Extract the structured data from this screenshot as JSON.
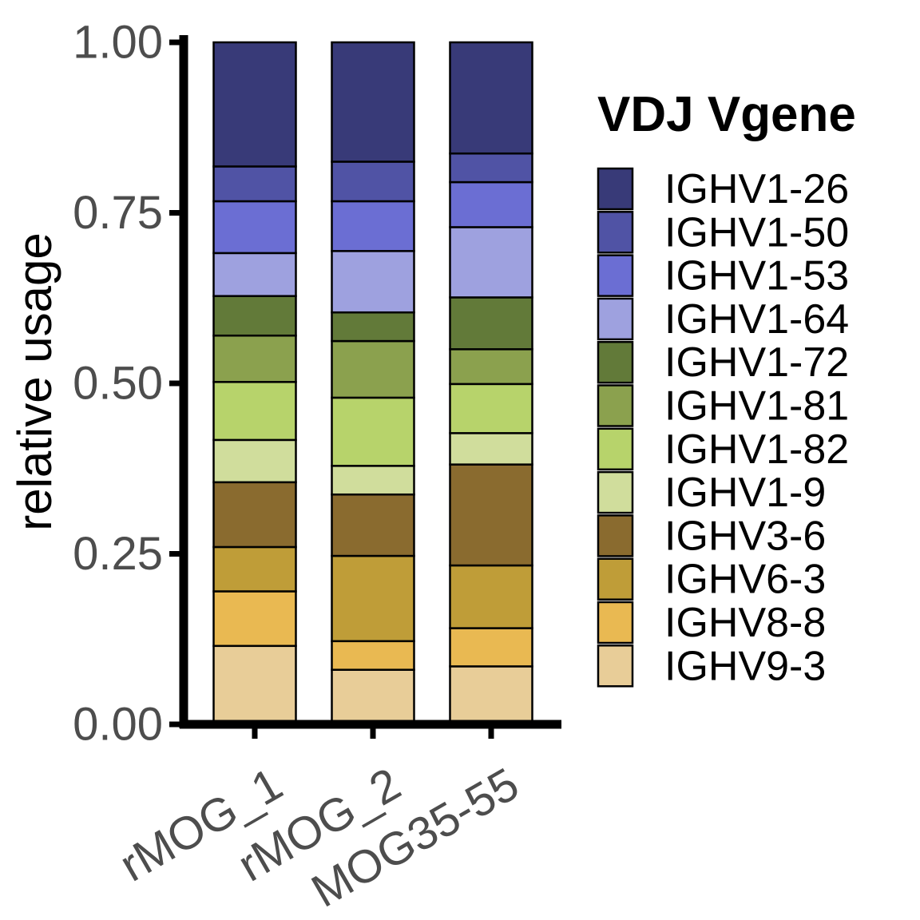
{
  "chart_data": {
    "type": "bar",
    "stacked": true,
    "ylabel": "relative usage",
    "ylim": [
      0,
      1
    ],
    "yticks": [
      "0.00",
      "0.25",
      "0.50",
      "0.75",
      "1.00"
    ],
    "categories": [
      "rMOG_1",
      "rMOG_2",
      "MOG35-55"
    ],
    "legend_title": "VDJ Vgene",
    "legend_position": "right",
    "series": [
      {
        "name": "IGHV9-3",
        "color": "#e8cd98",
        "values": [
          0.115,
          0.08,
          0.085
        ]
      },
      {
        "name": "IGHV8-8",
        "color": "#e9b952",
        "values": [
          0.08,
          0.042,
          0.056
        ]
      },
      {
        "name": "IGHV6-3",
        "color": "#bf9d38",
        "values": [
          0.065,
          0.125,
          0.092
        ]
      },
      {
        "name": "IGHV3-6",
        "color": "#8a6b2f",
        "values": [
          0.095,
          0.09,
          0.148
        ]
      },
      {
        "name": "IGHV1-9",
        "color": "#d0dd9c",
        "values": [
          0.062,
          0.042,
          0.046
        ]
      },
      {
        "name": "IGHV1-82",
        "color": "#b7d36b",
        "values": [
          0.085,
          0.1,
          0.072
        ]
      },
      {
        "name": "IGHV1-81",
        "color": "#8ba14e",
        "values": [
          0.068,
          0.083,
          0.051
        ]
      },
      {
        "name": "IGHV1-72",
        "color": "#627a39",
        "values": [
          0.058,
          0.042,
          0.076
        ]
      },
      {
        "name": "IGHV1-64",
        "color": "#9ea1df",
        "values": [
          0.063,
          0.09,
          0.103
        ]
      },
      {
        "name": "IGHV1-53",
        "color": "#6b6ed3",
        "values": [
          0.076,
          0.073,
          0.066
        ]
      },
      {
        "name": "IGHV1-50",
        "color": "#5053a5",
        "values": [
          0.051,
          0.058,
          0.042
        ]
      },
      {
        "name": "IGHV1-26",
        "color": "#383a78",
        "values": [
          0.182,
          0.175,
          0.163
        ]
      }
    ]
  }
}
